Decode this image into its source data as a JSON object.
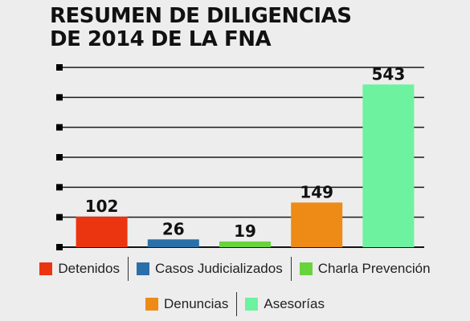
{
  "chart_data": {
    "type": "bar",
    "title": "RESUMEN DE DILIGENCIAS DE 2014 DE LA FNA",
    "xlabel": "",
    "ylabel": "",
    "categories": [
      "Detenidos",
      "Casos Judicializados",
      "Charla Prevención",
      "Denuncias",
      "Asesorías"
    ],
    "values": [
      102,
      26,
      19,
      149,
      543
    ],
    "colors": [
      "#ea3510",
      "#2b6fa8",
      "#69d33c",
      "#ee8b16",
      "#6df2a0"
    ],
    "ylim": [
      0,
      600
    ],
    "grid": true,
    "tick_labels_shown": false,
    "legend": {
      "placement": "bottom",
      "rows": [
        [
          "Detenidos",
          "Casos Judicializados",
          "Charla Prevención"
        ],
        [
          "Denuncias",
          "Asesorías"
        ]
      ]
    }
  }
}
